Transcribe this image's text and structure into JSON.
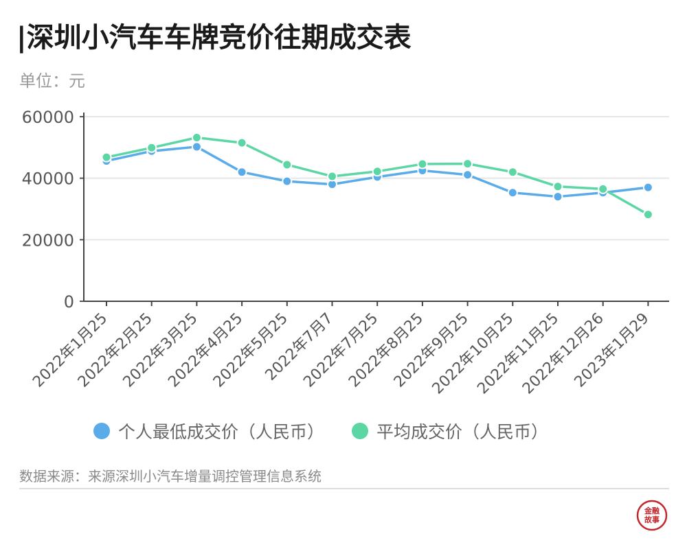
{
  "header": {
    "title": "|深圳小汽车车牌竞价往期成交表",
    "unit": "单位：元"
  },
  "footer": {
    "source": "数据来源：来源深圳小汽车增量调控管理信息系统",
    "logo_text_top": "金融",
    "logo_text_bottom": "故事"
  },
  "colors": {
    "series_min": "#5aace9",
    "series_avg": "#5dd6a6",
    "logo": "#c2272d"
  },
  "chart_data": {
    "type": "line",
    "title": "|深圳小汽车车牌竞价往期成交表",
    "ylabel": "单位：元",
    "xlabel": "",
    "ylim": [
      0,
      60000
    ],
    "yticks": [
      0,
      20000,
      40000,
      60000
    ],
    "grid": true,
    "legend": "bottom",
    "categories": [
      "2022年1月25",
      "2022年2月25",
      "2022年3月25",
      "2022年4月25",
      "2022年5月25",
      "2022年7月7",
      "2022年7月25",
      "2022年8月25",
      "2022年9月25",
      "2022年10月25",
      "2022年11月25",
      "2022年12月26",
      "2023年1月29"
    ],
    "series": [
      {
        "name": "个人最低成交价（人民币）",
        "color": "#5aace9",
        "values": [
          45600,
          48800,
          50200,
          42000,
          39000,
          38000,
          40400,
          42500,
          41100,
          35300,
          34000,
          35300,
          37000
        ]
      },
      {
        "name": "平均成交价（人民币）",
        "color": "#5dd6a6",
        "values": [
          46800,
          49900,
          53200,
          51500,
          44400,
          40600,
          42200,
          44600,
          44700,
          42000,
          37300,
          36500,
          28200
        ]
      }
    ]
  }
}
